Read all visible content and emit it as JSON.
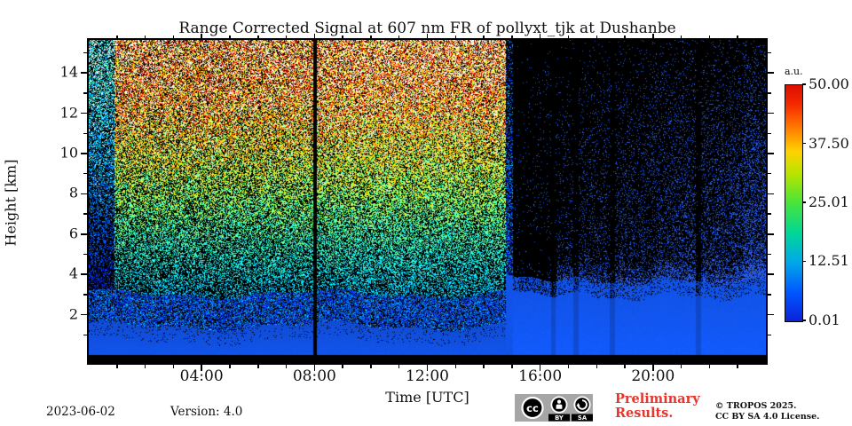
{
  "title": "Range Corrected Signal at 607 nm FR of pollyxt_tjk at Dushanbe",
  "footer": {
    "date": "2023-06-02",
    "version": "Version: 4.0",
    "preliminary_line1": "Preliminary",
    "preliminary_line2": "Results.",
    "preliminary_color": "#e8352b",
    "copyright_line1": "© TROPOS 2025.",
    "copyright_line2": "CC BY SA 4.0 License.",
    "cc_badge": {
      "cc": "cc",
      "by": "BY",
      "sa": "SA"
    }
  },
  "chart_data": {
    "type": "heatmap",
    "title": "Range Corrected Signal at 607 nm FR of pollyxt_tjk at Dushanbe",
    "xlabel": "Time [UTC]",
    "ylabel": "Height [km]",
    "x_axis": {
      "range_hours": [
        0,
        24
      ],
      "major_tick_hours": [
        4,
        8,
        12,
        16,
        20
      ],
      "major_tick_labels": [
        "04:00",
        "08:00",
        "12:00",
        "16:00",
        "20:00"
      ],
      "minor_tick_interval_hours": 1
    },
    "y_axis": {
      "range_km": [
        -0.45,
        15.6
      ],
      "major_ticks_km": [
        2,
        4,
        6,
        8,
        10,
        12,
        14
      ],
      "major_tick_labels": [
        "2",
        "4",
        "6",
        "8",
        "10",
        "12",
        "14"
      ],
      "minor_ticks_km": [
        1,
        3,
        5,
        7,
        9,
        11,
        13,
        15
      ]
    },
    "colorbar": {
      "label": "a.u.",
      "tick_labels": [
        "50.00",
        "37.50",
        "25.01",
        "12.51",
        "0.01"
      ],
      "tick_values": [
        50.0,
        37.5,
        25.01,
        12.51,
        0.01
      ],
      "value_range": [
        0.01,
        50.0
      ],
      "colormap": "jet",
      "gradient_stops_bottom_to_top": [
        [
          0.0,
          "#0a22d8"
        ],
        [
          0.12,
          "#0055ff"
        ],
        [
          0.25,
          "#00a8e8"
        ],
        [
          0.37,
          "#00d69a"
        ],
        [
          0.5,
          "#46e43c"
        ],
        [
          0.62,
          "#b4e400"
        ],
        [
          0.72,
          "#ffd200"
        ],
        [
          0.82,
          "#ff7a00"
        ],
        [
          0.92,
          "#f42800"
        ],
        [
          1.0,
          "#dc0f00"
        ]
      ]
    },
    "signal_model": {
      "seed": 1337,
      "day_night_transition_hour": 14.78,
      "transition_fringe_hours": [
        14.78,
        15.02
      ],
      "calibration_line_hour": 8.0,
      "calibration_line_halfwidth_hours": 0.055,
      "boundary_layer_top_km_day": 1.45,
      "boundary_layer_top_km_night": 4.1,
      "night_layer_settle_km": 3.65,
      "low_signal_blob_hours": [
        15.0,
        16.55
      ],
      "cloud_streak_hours": [
        16.45,
        17.25,
        18.55,
        21.6
      ],
      "streak_halfwidth_hours": 0.09,
      "ground_black_band_below_km": 0.0,
      "layer_blue": "#104cd4",
      "night_speckle_blue": "#2558e8",
      "background_black": "#000000"
    }
  }
}
